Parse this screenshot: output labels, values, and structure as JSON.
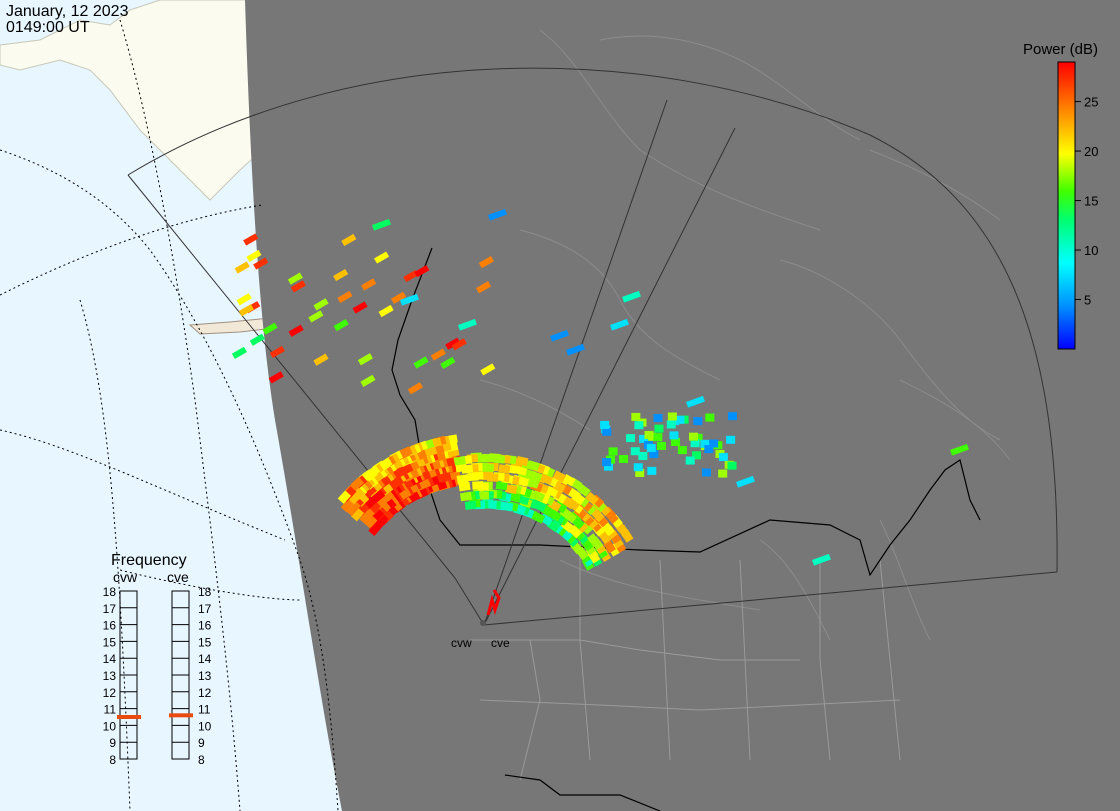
{
  "header": {
    "date": "January, 12 2023",
    "time": "0149:00 UT"
  },
  "colorbar": {
    "title": "Power (dB)",
    "ticks": [
      "25",
      "20",
      "15",
      "10",
      "5"
    ],
    "range": [
      0,
      29
    ],
    "tick_values": [
      25,
      20,
      15,
      10,
      5
    ],
    "colors": [
      "#0000ff",
      "#0080ff",
      "#00ffff",
      "#00ff80",
      "#00ff00",
      "#80ff00",
      "#ffff00",
      "#ff8000",
      "#ff0000"
    ]
  },
  "frequency": {
    "title": "Frequency",
    "radars": [
      "cvw",
      "cve"
    ],
    "ticks": [
      "18",
      "17",
      "16",
      "15",
      "14",
      "13",
      "12",
      "11",
      "10",
      "9",
      "8"
    ],
    "cvw_mhz": 10.5,
    "cve_mhz": 10.6,
    "marker_color": "#e84a10"
  },
  "radar_sites": {
    "labels": [
      "cvw",
      "cve"
    ]
  },
  "colors": {
    "land_day": "#fbfbf0",
    "ocean_day": "#e8f6ff",
    "night": "#777777",
    "border": "#000000",
    "fov": "#444444"
  }
}
